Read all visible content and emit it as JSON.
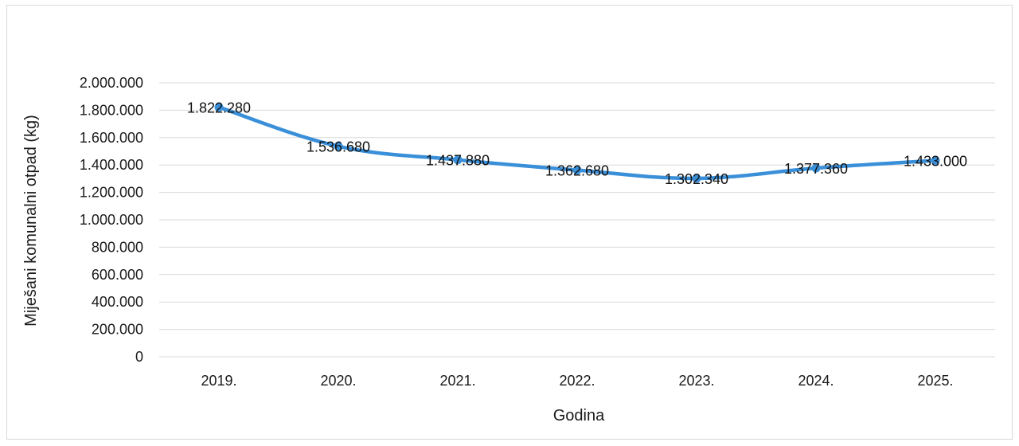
{
  "chart_data": {
    "type": "line",
    "categories": [
      "2019.",
      "2020.",
      "2021.",
      "2022.",
      "2023.",
      "2024.",
      "2025."
    ],
    "series": [
      {
        "values": [
          1822280,
          1536680,
          1437880,
          1362680,
          1302340,
          1377360,
          1433000
        ],
        "labels": [
          "1.822.280",
          "1.536.680",
          "1.437.880",
          "1.362.680",
          "1.302.340",
          "1.377.360",
          "1.433.000"
        ],
        "color": "#3a8fd9"
      }
    ],
    "title": "",
    "xlabel": "Godina",
    "ylabel": "Miješani komunalni otpad (kg)",
    "ylim": [
      0,
      2000000
    ],
    "yticks": [
      0,
      200000,
      400000,
      600000,
      800000,
      1000000,
      1200000,
      1400000,
      1600000,
      1800000,
      2000000
    ],
    "ytick_labels": [
      "0",
      "200.000",
      "400.000",
      "600.000",
      "800.000",
      "1.000.000",
      "1.200.000",
      "1.400.000",
      "1.600.000",
      "1.800.000",
      "2.000.000"
    ],
    "grid": true,
    "legend": "none"
  }
}
